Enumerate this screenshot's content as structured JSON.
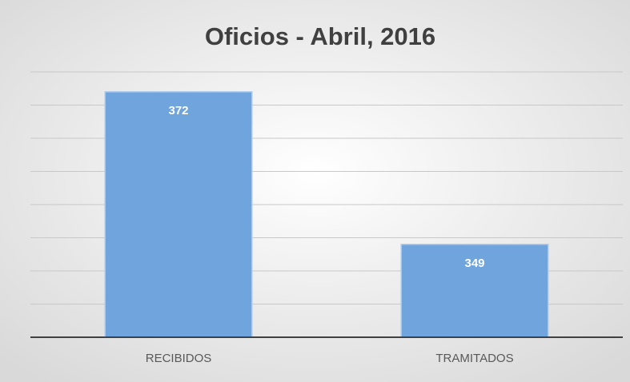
{
  "chart_data": {
    "type": "bar",
    "title": "Oficios - Abril, 2016",
    "categories": [
      "RECIBIDOS",
      "TRAMITADOS"
    ],
    "values": [
      372,
      349
    ],
    "color": "#6fa5dc",
    "ylim": [
      335,
      375
    ],
    "yticks": [
      335,
      340,
      345,
      350,
      355,
      360,
      365,
      370,
      375
    ],
    "grid": true
  }
}
